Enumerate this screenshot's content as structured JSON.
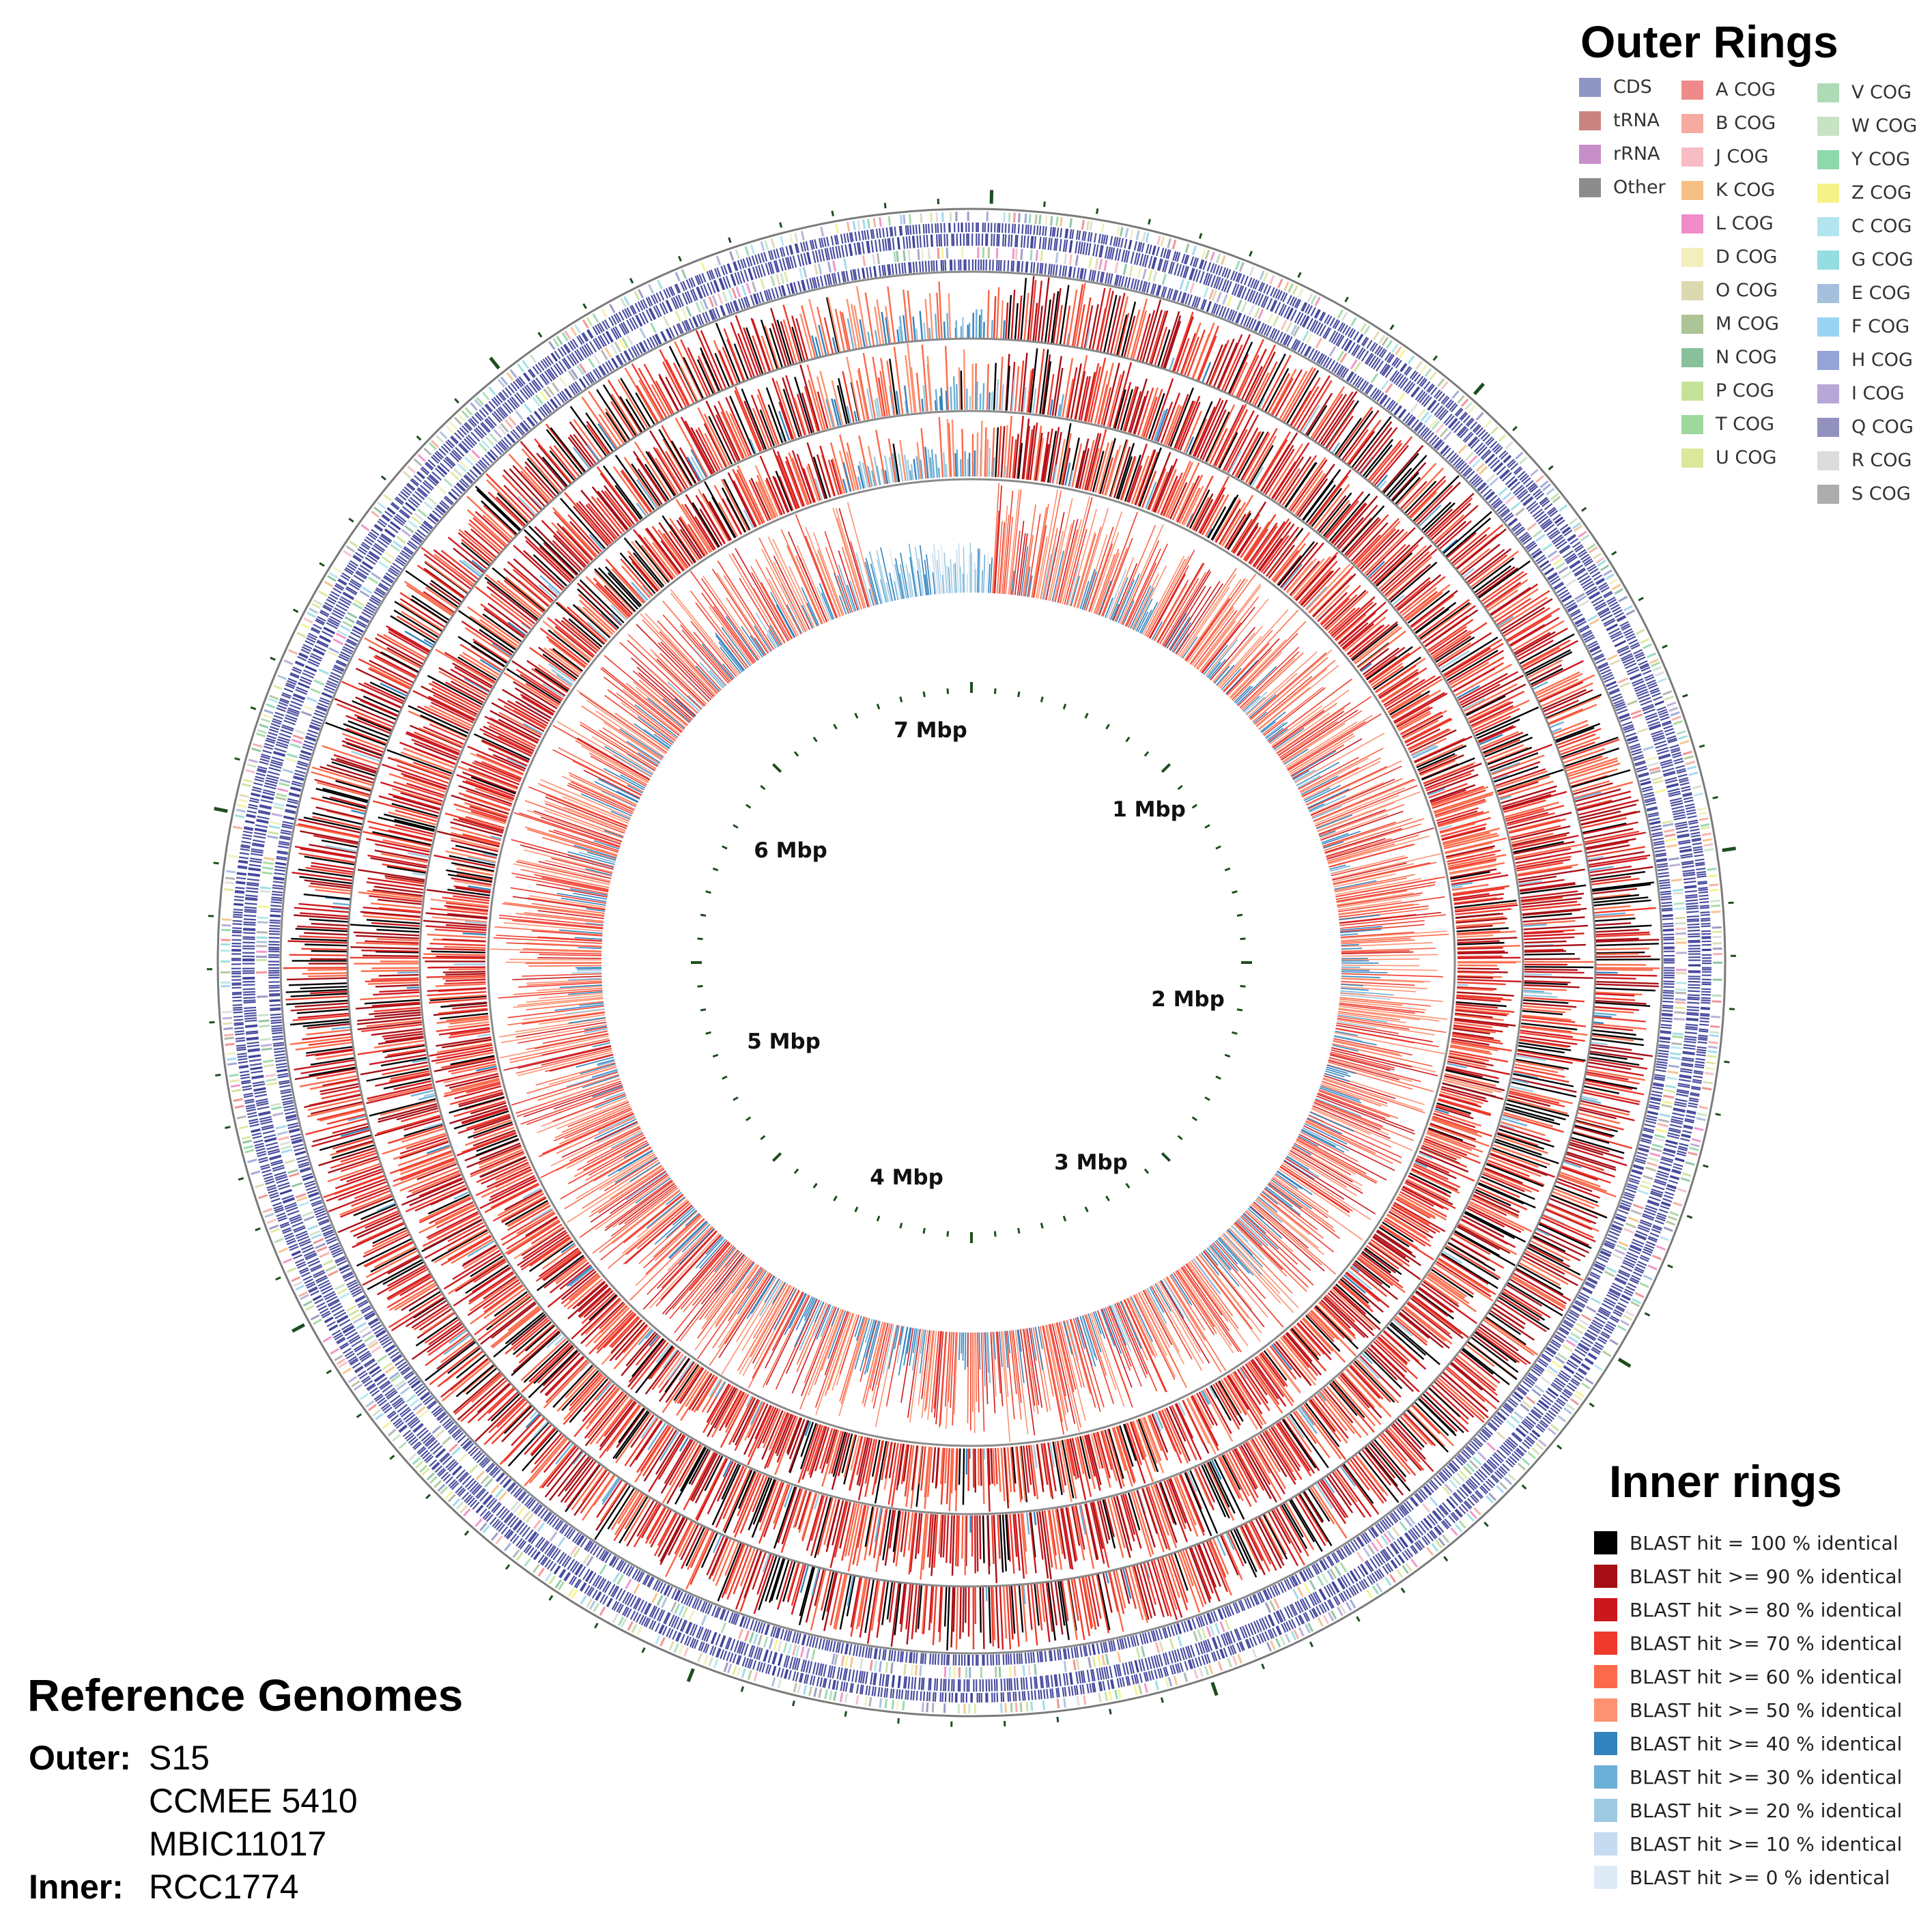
{
  "chart_data": {
    "type": "circular_genome_map",
    "axis_labels": [
      "1 Mbp",
      "2 Mbp",
      "3 Mbp",
      "4 Mbp",
      "5 Mbp",
      "6 Mbp",
      "7 Mbp"
    ],
    "outer_legend": {
      "title": "Outer Rings",
      "features": [
        {
          "label": "CDS",
          "color": "#8e96c4"
        },
        {
          "label": "tRNA",
          "color": "#c98480"
        },
        {
          "label": "rRNA",
          "color": "#c68fca"
        },
        {
          "label": "Other",
          "color": "#8c8c8c"
        }
      ],
      "cog_col1": [
        {
          "label": "A COG",
          "color": "#f08a8a"
        },
        {
          "label": "B COG",
          "color": "#f6aaa0"
        },
        {
          "label": "J COG",
          "color": "#f7bcc4"
        },
        {
          "label": "K COG",
          "color": "#f6bf86"
        },
        {
          "label": "L COG",
          "color": "#f08cc8"
        },
        {
          "label": "D COG",
          "color": "#f2efbd"
        },
        {
          "label": "O COG",
          "color": "#dcd9b0"
        },
        {
          "label": "M COG",
          "color": "#adc496"
        },
        {
          "label": "N COG",
          "color": "#88c09c"
        },
        {
          "label": "P COG",
          "color": "#c6e29a"
        },
        {
          "label": "T COG",
          "color": "#9ed89c"
        },
        {
          "label": "U COG",
          "color": "#dce79a"
        }
      ],
      "cog_col2": [
        {
          "label": "V COG",
          "color": "#aedbb6"
        },
        {
          "label": "W COG",
          "color": "#c8e2c4"
        },
        {
          "label": "Y COG",
          "color": "#8fd8ac"
        },
        {
          "label": "Z COG",
          "color": "#f4f38a"
        },
        {
          "label": "C COG",
          "color": "#b2e5ef"
        },
        {
          "label": "G COG",
          "color": "#94dde1"
        },
        {
          "label": "E COG",
          "color": "#a6bfdc"
        },
        {
          "label": "F COG",
          "color": "#9ad4f2"
        },
        {
          "label": "H COG",
          "color": "#96a3d6"
        },
        {
          "label": "I COG",
          "color": "#b6a8d6"
        },
        {
          "label": "Q COG",
          "color": "#9392be"
        },
        {
          "label": "R COG",
          "color": "#dcdcdc"
        },
        {
          "label": "S COG",
          "color": "#adadad"
        }
      ]
    },
    "inner_legend": {
      "title": "Inner rings",
      "items": [
        {
          "label": "BLAST hit = 100 % identical",
          "color": "#000000"
        },
        {
          "label": "BLAST hit >= 90 % identical",
          "color": "#a50f15"
        },
        {
          "label": "BLAST hit >= 80 % identical",
          "color": "#cb181d"
        },
        {
          "label": "BLAST hit >= 70 % identical",
          "color": "#ef3b2c"
        },
        {
          "label": "BLAST hit >= 60 % identical",
          "color": "#fb6a4a"
        },
        {
          "label": "BLAST hit >= 50 % identical",
          "color": "#fc9272"
        },
        {
          "label": "BLAST hit >= 40 % identical",
          "color": "#3182bd"
        },
        {
          "label": "BLAST hit >= 30 % identical",
          "color": "#6baed6"
        },
        {
          "label": "BLAST hit >= 20 % identical",
          "color": "#9ecae1"
        },
        {
          "label": "BLAST hit >= 10 % identical",
          "color": "#c6dbef"
        },
        {
          "label": "BLAST hit >= 0 % identical",
          "color": "#deebf7"
        }
      ]
    },
    "reference_genomes": {
      "title": "Reference Genomes",
      "outer_label": "Outer:",
      "outer": [
        "S15",
        "CCMEE 5410",
        "MBIC11017"
      ],
      "inner_label": "Inner:",
      "inner": [
        "RCC1774"
      ]
    }
  }
}
